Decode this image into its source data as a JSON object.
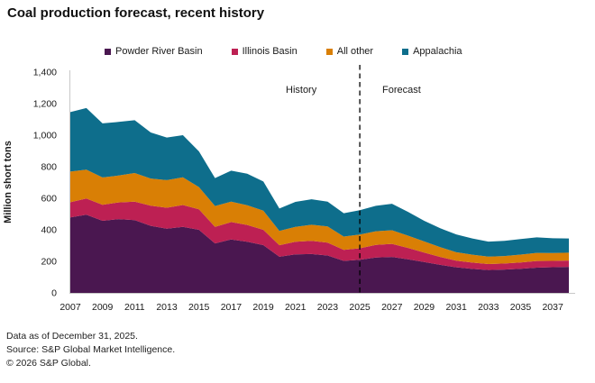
{
  "title": "Coal production forecast, recent history",
  "legend": [
    {
      "label": "Powder River Basin",
      "color": "#4a1750"
    },
    {
      "label": "Illinois Basin",
      "color": "#bd2053"
    },
    {
      "label": "All other",
      "color": "#d97f05"
    },
    {
      "label": "Appalachia",
      "color": "#0e6e8c"
    }
  ],
  "annotations": {
    "history": "History",
    "forecast": "Forecast"
  },
  "chart_data": {
    "type": "area",
    "stacked": true,
    "title": "Coal production forecast, recent history",
    "ylabel": "Million short tons",
    "ylim": [
      0,
      1400
    ],
    "ytick_step": 200,
    "grid": false,
    "legend_position": "top",
    "x": [
      2007,
      2008,
      2009,
      2010,
      2011,
      2012,
      2013,
      2014,
      2015,
      2016,
      2017,
      2018,
      2019,
      2020,
      2021,
      2022,
      2023,
      2024,
      2025,
      2026,
      2027,
      2028,
      2029,
      2030,
      2031,
      2032,
      2033,
      2034,
      2035,
      2036,
      2037,
      2038
    ],
    "xtick_labels": [
      2007,
      2009,
      2011,
      2013,
      2015,
      2017,
      2019,
      2021,
      2023,
      2025,
      2027,
      2029,
      2031,
      2033,
      2035,
      2037
    ],
    "divider_year": 2025,
    "series": [
      {
        "name": "Powder River Basin",
        "color": "#4a1750",
        "values": [
          479,
          496,
          457,
          468,
          462,
          425,
          407,
          418,
          400,
          314,
          339,
          324,
          303,
          229,
          244,
          246,
          237,
          203,
          210,
          224,
          228,
          213,
          196,
          178,
          162,
          152,
          145,
          148,
          153,
          160,
          163,
          165
        ]
      },
      {
        "name": "Illinois Basin",
        "color": "#bd2053",
        "values": [
          96,
          102,
          102,
          106,
          116,
          128,
          133,
          139,
          130,
          105,
          110,
          107,
          97,
          73,
          80,
          84,
          82,
          70,
          73,
          80,
          83,
          72,
          60,
          50,
          42,
          40,
          38,
          38,
          40,
          42,
          40,
          40
        ]
      },
      {
        "name": "All other",
        "color": "#d97f05",
        "values": [
          194,
          184,
          173,
          170,
          182,
          172,
          175,
          176,
          141,
          132,
          130,
          125,
          121,
          91,
          95,
          102,
          102,
          84,
          87,
          87,
          86,
          78,
          70,
          62,
          54,
          50,
          47,
          48,
          50,
          52,
          50,
          50
        ]
      },
      {
        "name": "Appalachia",
        "color": "#0e6e8c",
        "values": [
          377,
          390,
          343,
          340,
          335,
          292,
          270,
          267,
          226,
          177,
          196,
          200,
          185,
          142,
          158,
          162,
          157,
          148,
          154,
          161,
          168,
          151,
          131,
          120,
          113,
          103,
          95,
          96,
          98,
          98,
          93,
          90
        ]
      }
    ]
  },
  "footer": {
    "lines": [
      "Data as of December 31, 2025.",
      "Source: S&P Global Market Intelligence.",
      "© 2026 S&P Global."
    ]
  }
}
